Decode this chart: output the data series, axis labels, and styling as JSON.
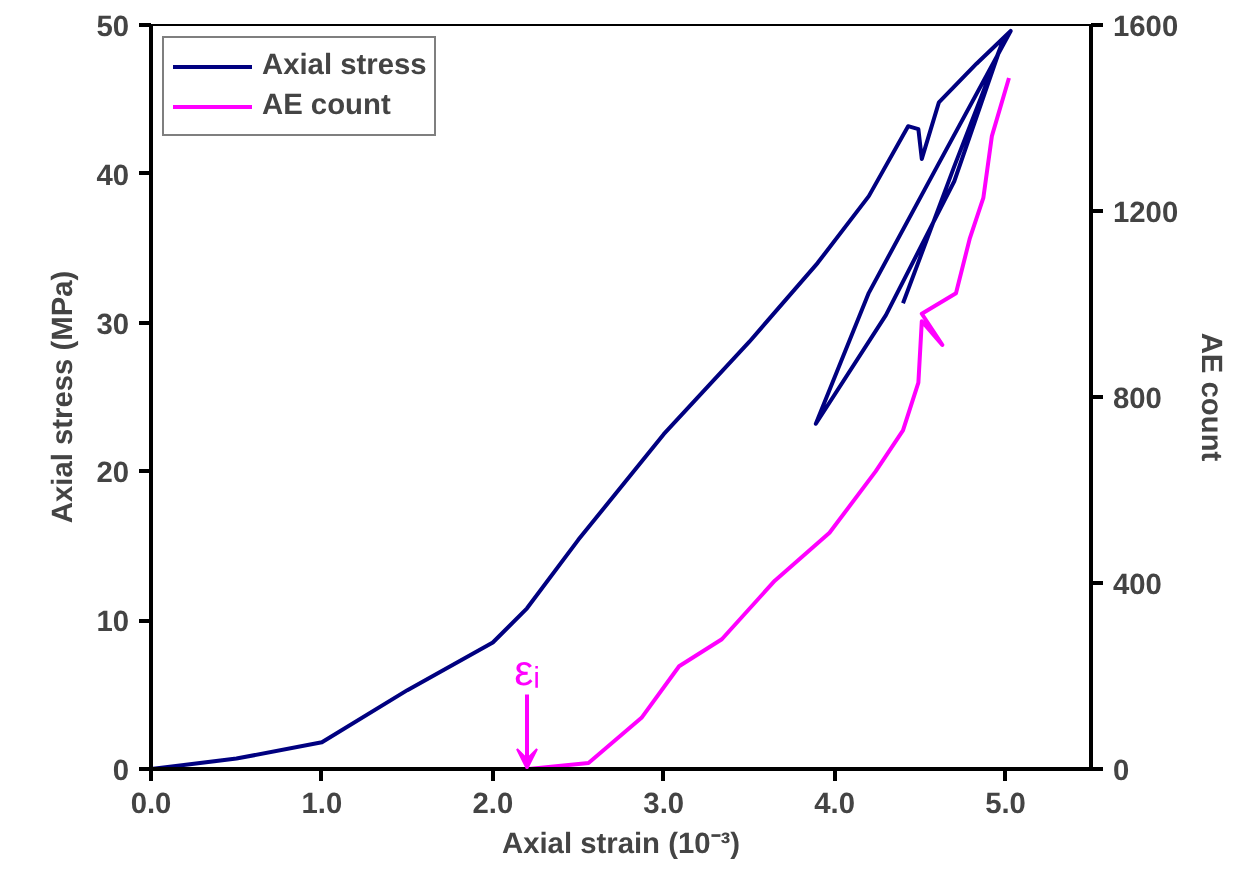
{
  "chart_data": {
    "type": "line",
    "xlabel": "Axial strain (10⁻³)",
    "ylabel": "Axial stress (MPa)",
    "y2label": "AE count",
    "xlim": [
      0,
      5.5
    ],
    "xticks": [
      {
        "value": 0,
        "label": "0.0"
      },
      {
        "value": 1,
        "label": "1.0"
      },
      {
        "value": 2,
        "label": "2.0"
      },
      {
        "value": 3,
        "label": "3.0"
      },
      {
        "value": 4,
        "label": "4.0"
      },
      {
        "value": 5,
        "label": "5.0"
      }
    ],
    "ylim": [
      0,
      50
    ],
    "yticks": [
      0,
      10,
      20,
      30,
      40,
      50
    ],
    "y2lim": [
      0,
      1600
    ],
    "y2ticks": [
      0,
      400,
      800,
      1200,
      1600
    ],
    "grid": false,
    "legend": "top left",
    "line_style": "solid",
    "marker": "none",
    "series": [
      {
        "name": "Axial stress",
        "color": "#000080",
        "x": [
          0,
          0.5,
          1.0,
          1.5,
          2.0,
          2.2,
          2.5,
          3.0,
          3.5,
          3.9,
          4.2,
          4.43,
          4.49,
          4.51,
          4.61,
          4.83,
          5.03,
          4.6,
          4.2,
          3.89,
          4.3,
          4.7,
          4.98,
          4.7,
          4.4
        ],
        "values": [
          0,
          0.7,
          1.8,
          5.3,
          8.5,
          10.8,
          15.4,
          22.5,
          28.7,
          34.0,
          38.5,
          43.2,
          43.0,
          41.0,
          44.8,
          47.4,
          49.6,
          40.5,
          32.0,
          23.2,
          30.5,
          39.5,
          48.8,
          40.5,
          31.3
        ]
      },
      {
        "name": "AE count",
        "color": "#ff00ff",
        "axis": "y2",
        "x": [
          2.21,
          2.56,
          2.87,
          3.09,
          3.34,
          3.65,
          3.97,
          4.24,
          4.4,
          4.49,
          4.51,
          4.63,
          4.51,
          4.71,
          4.79,
          4.87,
          4.92,
          5.02
        ],
        "values": [
          0,
          13,
          110,
          221,
          279,
          405,
          508,
          640,
          728,
          831,
          963,
          912,
          979,
          1023,
          1140,
          1228,
          1361,
          1486
        ]
      }
    ],
    "annotations": [
      {
        "text": "εᵢ",
        "x": 2.2,
        "y": 0
      }
    ]
  }
}
